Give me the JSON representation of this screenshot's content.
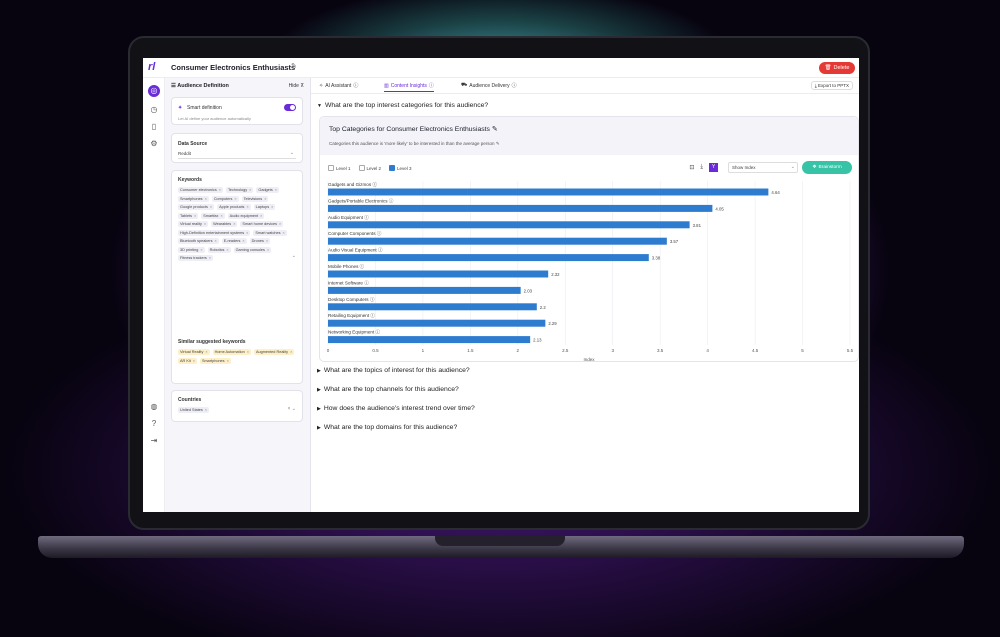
{
  "header": {
    "title": "Consumer Electronics Enthusiasts",
    "delete_label": "Delete"
  },
  "side": {
    "title": "Audience Definition",
    "hide_label": "Hide",
    "smart_definition": {
      "label": "Smart definition",
      "sub": "Let AI define your audience automatically"
    },
    "data_source": {
      "label": "Data Source",
      "value": "Reddit"
    },
    "keywords": {
      "label": "Keywords",
      "items": [
        "Consumer electronics",
        "Technology",
        "Gadgets",
        "Smartphones",
        "Computers",
        "Televisions",
        "Google products",
        "Apple products",
        "Laptops",
        "Tablets",
        "Smartfax",
        "Audio equipment",
        "Virtual reality",
        "Wearables",
        "Smart home devices",
        "High-Definition entertainment systems",
        "Smart watches",
        "Bluetooth speakers",
        "E-readers",
        "Drones",
        "3D printing",
        "Robotics",
        "Gaming consoles",
        "Fitness trackers"
      ]
    },
    "suggested": {
      "label": "Similar suggested keywords",
      "items": [
        "Virtual Reality",
        "Home Automation",
        "Augmented Reality",
        "AR Kit",
        "Smartphones"
      ]
    },
    "countries": {
      "label": "Countries",
      "items": [
        "United States"
      ]
    }
  },
  "tabs": [
    {
      "label": "AI Assistant",
      "active": false
    },
    {
      "label": "Content Insights",
      "active": true
    },
    {
      "label": "Audience Delivery",
      "active": false
    }
  ],
  "export_label": "Export to PPTX",
  "questions": [
    "What are the top interest categories for this audience?",
    "What are the topics of interest for this audience?",
    "What are the top channels for this audience?",
    "How does the audience's interest trend over time?",
    "What are the top domains for this audience?"
  ],
  "chart_card": {
    "title": "Top Categories for Consumer Electronics Enthusiasts",
    "subtitle": "Categories this audience is 'more likely' to be interested in than the average person",
    "levels": [
      {
        "label": "Level 1",
        "checked": false
      },
      {
        "label": "Level 2",
        "checked": false
      },
      {
        "label": "Level 3",
        "checked": true
      }
    ],
    "show_select": "Show Index",
    "brainstorm_label": "Brainstorm"
  },
  "chart_data": {
    "type": "bar",
    "orientation": "horizontal",
    "categories": [
      "Gadgets and Gizmos",
      "Gadgets/Portable Electronics",
      "Audio Equipment",
      "Computer Components",
      "Audio Visual Equipment",
      "Mobile Phones",
      "Internet Software",
      "Desktop Computers",
      "Retailing Equipment",
      "Networking Equipment"
    ],
    "values": [
      4.64,
      4.05,
      3.81,
      3.57,
      3.38,
      2.32,
      2.03,
      2.2,
      2.29,
      2.13
    ],
    "value_labels": [
      "4.64",
      "4.05",
      "3.81",
      "3.57",
      "3.38",
      "2.32",
      "2.03",
      "2.2",
      "2.29",
      "2.13"
    ],
    "xlabel": "Index",
    "xlim": [
      0,
      5.5
    ],
    "xticks": [
      "0",
      "0.5",
      "1",
      "1.5",
      "2",
      "2.5",
      "3",
      "3.5",
      "4",
      "4.5",
      "5",
      "5.5"
    ],
    "grid": true,
    "bar_color": "#2d7ccf"
  },
  "colors": {
    "accent": "#6a2bd9",
    "delete": "#e53935",
    "brainstorm": "#36c3a6"
  }
}
